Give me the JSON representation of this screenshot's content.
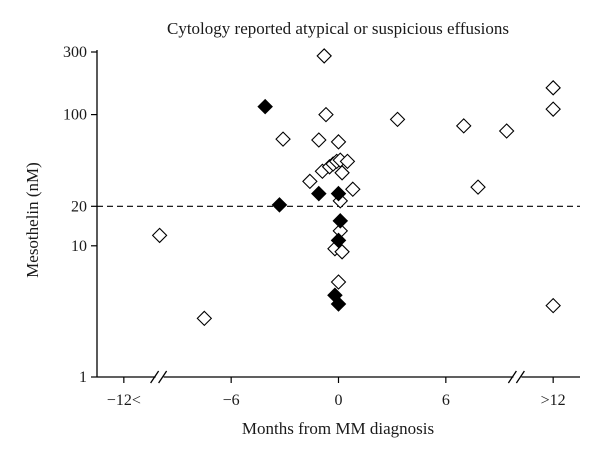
{
  "chart_data": {
    "type": "scatter",
    "title": "Cytology reported atypical or suspicious effusions",
    "xlabel": "Months from MM diagnosis",
    "ylabel": "Mesothelin (nM)",
    "x_scale": "linear",
    "y_scale": "log",
    "xlim": [
      -13.5,
      13.5
    ],
    "ylim": [
      1,
      300
    ],
    "x_ticks": [
      {
        "value": -12,
        "label": "−12<"
      },
      {
        "value": -6,
        "label": "−6"
      },
      {
        "value": 0,
        "label": "0"
      },
      {
        "value": 6,
        "label": "6"
      },
      {
        "value": 12,
        "label": ">12"
      }
    ],
    "y_ticks": [
      {
        "value": 1,
        "label": "1"
      },
      {
        "value": 10,
        "label": "10"
      },
      {
        "value": 20,
        "label": "20"
      },
      {
        "value": 100,
        "label": "100"
      },
      {
        "value": 300,
        "label": "300"
      }
    ],
    "x_axis_break": "between −12 and −6, and between 6 and 12",
    "threshold_line": {
      "y": 20,
      "style": "dashed"
    },
    "grid": false,
    "legend": "none",
    "marker": "diamond",
    "series": [
      {
        "fill": "open",
        "points": [
          {
            "x": -10,
            "y": 12
          },
          {
            "x": -7.5,
            "y": 2.8
          },
          {
            "x": -3.1,
            "y": 65
          },
          {
            "x": -0.8,
            "y": 280
          },
          {
            "x": -0.7,
            "y": 100
          },
          {
            "x": -1.1,
            "y": 64
          },
          {
            "x": -0.9,
            "y": 37
          },
          {
            "x": -1.6,
            "y": 31
          },
          {
            "x": -0.5,
            "y": 40
          },
          {
            "x": -0.3,
            "y": 42
          },
          {
            "x": -0.1,
            "y": 44
          },
          {
            "x": 0.1,
            "y": 45
          },
          {
            "x": 0.5,
            "y": 44
          },
          {
            "x": 0.2,
            "y": 36
          },
          {
            "x": 0.8,
            "y": 27
          },
          {
            "x": 0.0,
            "y": 62
          },
          {
            "x": 0.1,
            "y": 22
          },
          {
            "x": 0.1,
            "y": 13
          },
          {
            "x": -0.2,
            "y": 9.5
          },
          {
            "x": 0.2,
            "y": 9
          },
          {
            "x": 0.0,
            "y": 5.3
          },
          {
            "x": 3.3,
            "y": 92
          },
          {
            "x": 7,
            "y": 82
          },
          {
            "x": 7.8,
            "y": 28
          },
          {
            "x": 9.4,
            "y": 75
          },
          {
            "x": 12,
            "y": 160
          },
          {
            "x": 12,
            "y": 110
          },
          {
            "x": 12,
            "y": 3.5
          }
        ]
      },
      {
        "fill": "filled",
        "points": [
          {
            "x": -4.1,
            "y": 115
          },
          {
            "x": -3.3,
            "y": 20.5
          },
          {
            "x": -1.1,
            "y": 25
          },
          {
            "x": 0.0,
            "y": 25
          },
          {
            "x": 0.1,
            "y": 15.5
          },
          {
            "x": 0.0,
            "y": 11
          },
          {
            "x": -0.2,
            "y": 4.2
          },
          {
            "x": 0.0,
            "y": 3.6
          }
        ]
      }
    ]
  }
}
